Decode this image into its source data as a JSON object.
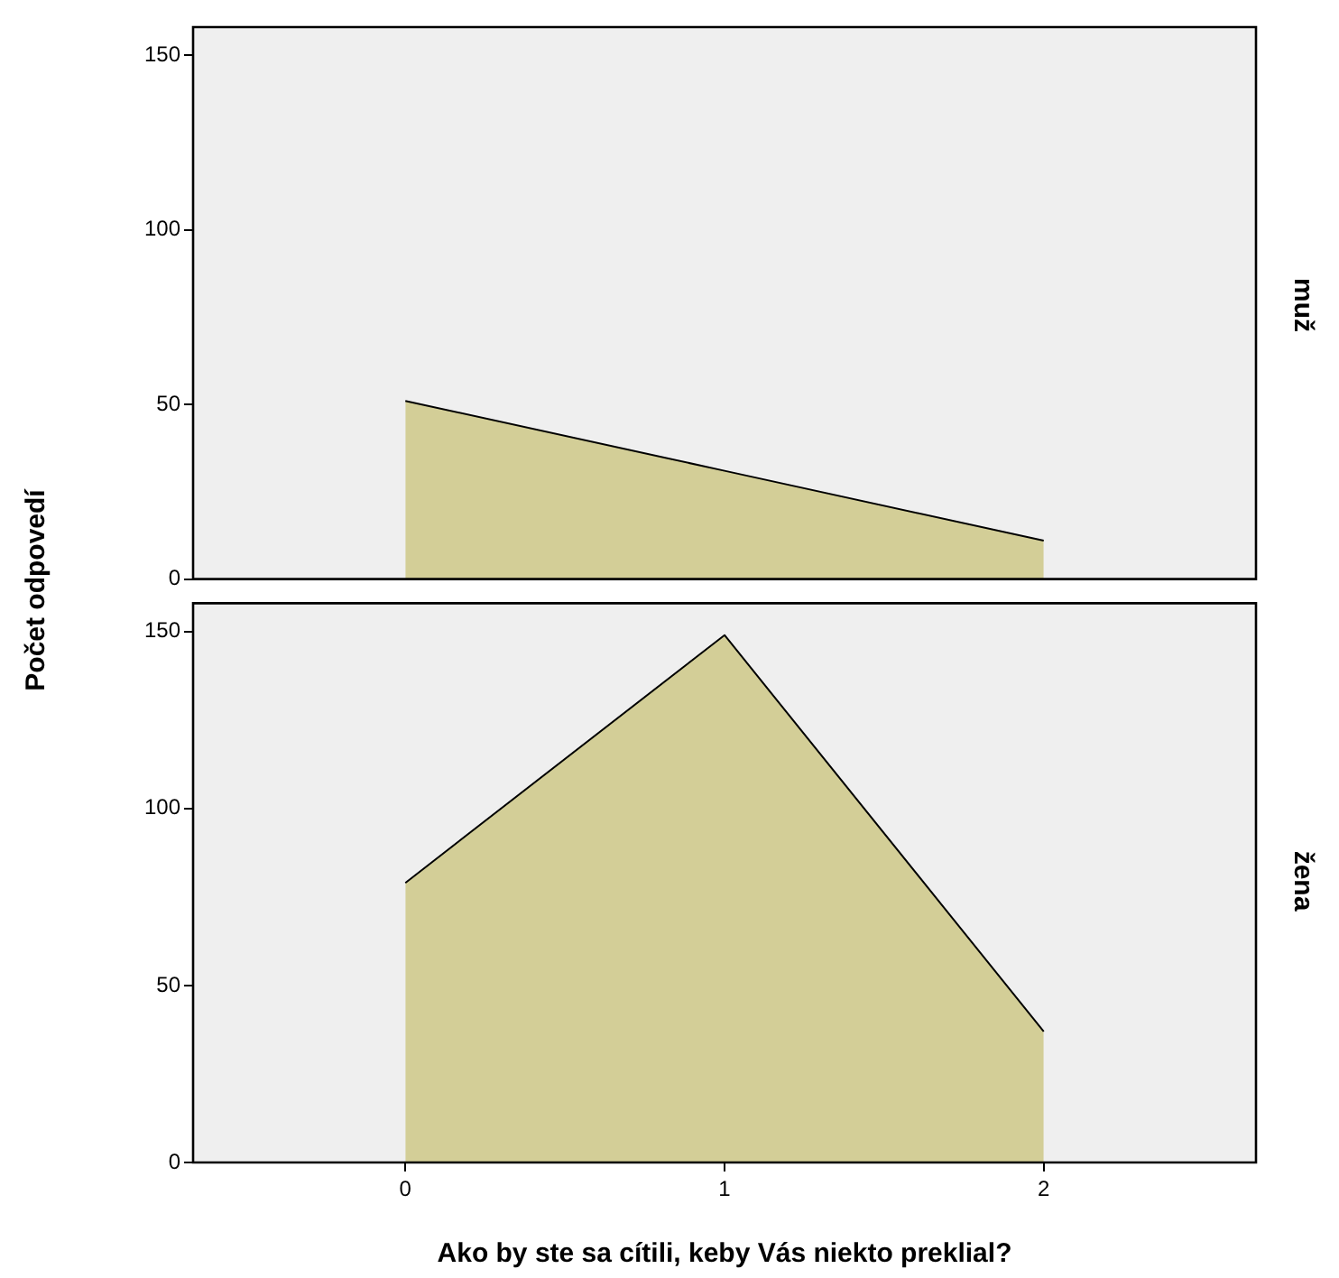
{
  "chart_data": [
    {
      "type": "area",
      "annotations": [
        "muž"
      ],
      "ylabel": "Počet odpovedí",
      "x": [
        0,
        1,
        2
      ],
      "values": [
        51,
        31,
        11
      ],
      "color": "#d3ce97",
      "xlim": [
        -0.665,
        2.665
      ],
      "xticks": [
        0,
        1,
        2
      ],
      "ylim": [
        0,
        158
      ],
      "yticks": [
        0,
        50,
        100,
        150
      ],
      "tick_labels": "y"
    },
    {
      "type": "area",
      "annotations": [
        "žena"
      ],
      "xlabel": "Ako by ste sa cítili, keby Vás niekto preklial?",
      "x": [
        0,
        1,
        2
      ],
      "values": [
        79,
        149,
        37
      ],
      "color": "#d3ce97",
      "xlim": [
        -0.665,
        2.665
      ],
      "xticks": [
        0,
        1,
        2
      ],
      "ylim": [
        0,
        158
      ],
      "yticks": [
        0,
        50,
        100,
        150
      ]
    }
  ]
}
